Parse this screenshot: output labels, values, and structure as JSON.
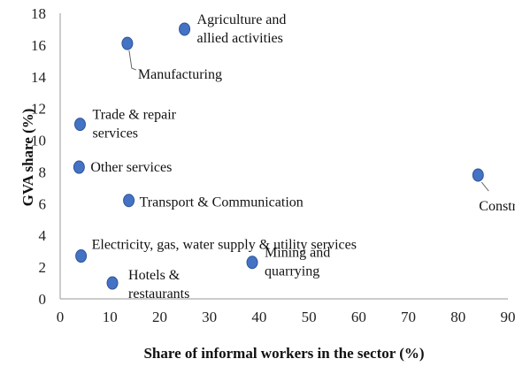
{
  "chart_data": {
    "type": "scatter",
    "xlabel": "Share of informal workers in the sector (%)",
    "ylabel": "GVA share (%)",
    "xlim": [
      0,
      90
    ],
    "ylim": [
      0,
      18
    ],
    "x_ticks": [
      "0",
      "10",
      "20",
      "30",
      "40",
      "50",
      "60",
      "70",
      "80",
      "90"
    ],
    "y_ticks": [
      "0",
      "2",
      "4",
      "6",
      "8",
      "10",
      "12",
      "14",
      "16",
      "18"
    ],
    "grid": false,
    "marker_color": "#4472C4",
    "points": [
      {
        "label": [
          "Agriculture and",
          "allied activities"
        ],
        "x": 25,
        "y": 17
      },
      {
        "label": [
          "Manufacturing"
        ],
        "x": 13.5,
        "y": 16.1
      },
      {
        "label": [
          "Trade & repair",
          "services"
        ],
        "x": 4,
        "y": 11
      },
      {
        "label": [
          "Other services"
        ],
        "x": 3.8,
        "y": 8.3
      },
      {
        "label": [
          "Transport & Communication"
        ],
        "x": 13.8,
        "y": 6.2
      },
      {
        "label": [
          "Construction"
        ],
        "x": 84,
        "y": 7.8
      },
      {
        "label": [
          "Electricity, gas, water supply & utility services"
        ],
        "x": 4.2,
        "y": 2.7
      },
      {
        "label": [
          "Mining and",
          "quarrying"
        ],
        "x": 38.6,
        "y": 2.3
      },
      {
        "label": [
          "Hotels &",
          "restaurants"
        ],
        "x": 10.5,
        "y": 1
      }
    ]
  }
}
